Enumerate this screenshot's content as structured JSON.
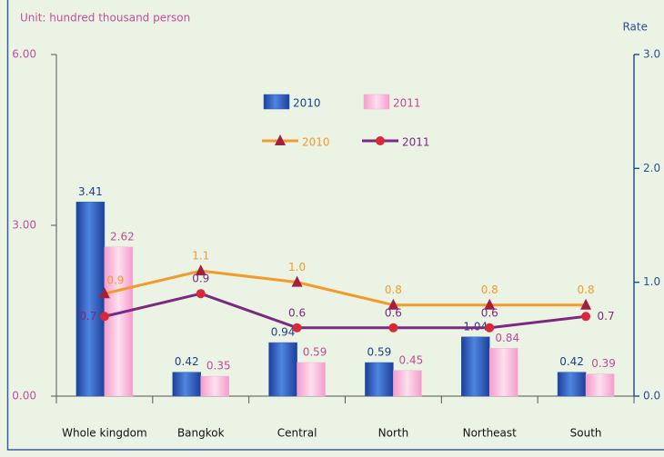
{
  "chart_data": {
    "type": "bar",
    "y_label": "Unit: hundred thousand person",
    "y2_label": "Rate",
    "categories": [
      "Whole kingdom",
      "Bangkok",
      "Central",
      "North",
      "Northeast",
      "South"
    ],
    "ylim": [
      0,
      6
    ],
    "yticks": [
      {
        "value": 0,
        "label": "0.00"
      },
      {
        "value": 3,
        "label": "3.00"
      },
      {
        "value": 6,
        "label": "6.00"
      }
    ],
    "y2lim": [
      0,
      3
    ],
    "y2ticks": [
      {
        "value": 0,
        "label": "0.0"
      },
      {
        "value": 1,
        "label": "1.0"
      },
      {
        "value": 2,
        "label": "2.0"
      },
      {
        "value": 3,
        "label": "3.0"
      }
    ],
    "series": [
      {
        "name": "2010",
        "type": "bar",
        "color": "#2a5db8",
        "label_color": "#1f3f8a",
        "values": [
          3.41,
          0.42,
          0.94,
          0.59,
          1.04,
          0.42
        ]
      },
      {
        "name": "2011",
        "type": "bar",
        "color": "#f6aed4",
        "label_color": "#c04a95",
        "values": [
          2.62,
          0.35,
          0.59,
          0.45,
          0.84,
          0.39
        ]
      },
      {
        "name": "2010",
        "type": "line",
        "axis": "y2",
        "color": "#f39a2c",
        "marker": "triangle",
        "marker_color": "#a31f3f",
        "values": [
          0.9,
          1.1,
          1.0,
          0.8,
          0.8,
          0.8
        ],
        "value_labels": [
          "0.9",
          "1.1",
          "1.0",
          "0.8",
          "0.8",
          "0.8"
        ]
      },
      {
        "name": "2011",
        "type": "line",
        "axis": "y2",
        "color": "#7a2a80",
        "marker": "circle",
        "marker_color": "#d8283a",
        "values": [
          0.7,
          0.9,
          0.6,
          0.6,
          0.6,
          0.7
        ],
        "value_labels": [
          "0.7",
          "0.9",
          "0.6",
          "0.6",
          "0.6",
          "0.7"
        ]
      }
    ]
  }
}
